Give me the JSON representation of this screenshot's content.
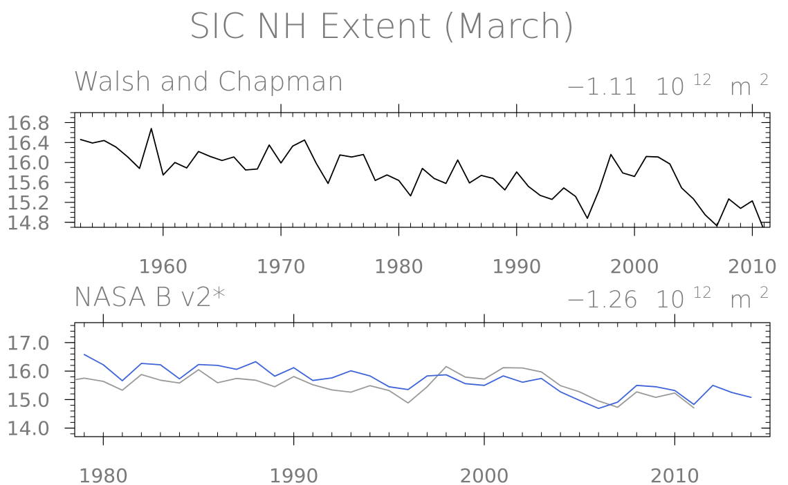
{
  "figure": {
    "title": "SIC NH Extent (March)"
  },
  "chart_data": [
    {
      "type": "line",
      "title": "Walsh and Chapman",
      "trend_value": "−1.11",
      "trend_unit_base": "10",
      "trend_unit_exp": "12",
      "trend_unit_m": "m",
      "trend_unit_m_exp": "2",
      "xlim": [
        1952.5,
        2011.5
      ],
      "ylim": [
        14.7,
        17.0
      ],
      "x_ticks": [
        1960,
        1970,
        1980,
        1990,
        2000,
        2010
      ],
      "x_tick_labels": [
        "1960",
        "1970",
        "1980",
        "1990",
        "2000",
        "2010"
      ],
      "y_ticks": [
        14.8,
        15.2,
        15.6,
        16.0,
        16.4,
        16.8
      ],
      "y_tick_labels": [
        "14.8",
        "15.2",
        "15.6",
        "16.0",
        "16.4",
        "16.8"
      ],
      "grid": false,
      "series": [
        {
          "color": "#000000",
          "x": [
            1953,
            1954,
            1955,
            1956,
            1957,
            1958,
            1959,
            1960,
            1961,
            1962,
            1963,
            1964,
            1965,
            1966,
            1967,
            1968,
            1969,
            1970,
            1971,
            1972,
            1973,
            1974,
            1975,
            1976,
            1977,
            1978,
            1979,
            1980,
            1981,
            1982,
            1983,
            1984,
            1985,
            1986,
            1987,
            1988,
            1989,
            1990,
            1991,
            1992,
            1993,
            1994,
            1995,
            1996,
            1997,
            1998,
            1999,
            2000,
            2001,
            2002,
            2003,
            2004,
            2005,
            2006,
            2007,
            2008,
            2009,
            2010,
            2011
          ],
          "values": [
            16.46,
            16.39,
            16.44,
            16.31,
            16.11,
            15.88,
            16.68,
            15.75,
            16.0,
            15.89,
            16.22,
            16.12,
            16.04,
            16.11,
            15.85,
            15.87,
            16.35,
            15.99,
            16.33,
            16.45,
            15.98,
            15.58,
            16.15,
            16.11,
            16.16,
            15.64,
            15.75,
            15.64,
            15.33,
            15.88,
            15.68,
            15.58,
            16.05,
            15.59,
            15.74,
            15.68,
            15.45,
            15.81,
            15.52,
            15.34,
            15.26,
            15.49,
            15.32,
            14.88,
            15.45,
            16.16,
            15.79,
            15.72,
            16.12,
            16.11,
            15.97,
            15.49,
            15.27,
            14.95,
            14.73,
            15.27,
            15.08,
            15.23,
            14.64
          ]
        }
      ]
    },
    {
      "type": "line",
      "title": "NASA B v2*",
      "trend_value": "−1.26",
      "trend_unit_base": "10",
      "trend_unit_exp": "12",
      "trend_unit_m": "m",
      "trend_unit_m_exp": "2",
      "xlim": [
        1978.5,
        2015.0
      ],
      "ylim": [
        13.7,
        17.7
      ],
      "x_ticks": [
        1980,
        1990,
        2000,
        2010
      ],
      "x_tick_labels": [
        "1980",
        "1990",
        "2000",
        "2010"
      ],
      "y_ticks": [
        14.0,
        15.0,
        16.0,
        17.0
      ],
      "y_tick_labels": [
        "14.0",
        "15.0",
        "16.0",
        "17.0"
      ],
      "grid": false,
      "series": [
        {
          "color": "#3d63d9",
          "x": [
            1979,
            1980,
            1981,
            1982,
            1983,
            1984,
            1985,
            1986,
            1987,
            1988,
            1989,
            1990,
            1991,
            1992,
            1993,
            1994,
            1995,
            1996,
            1997,
            1998,
            1999,
            2000,
            2001,
            2002,
            2003,
            2004,
            2005,
            2006,
            2007,
            2008,
            2009,
            2010,
            2011,
            2012,
            2013,
            2014
          ],
          "values": [
            16.58,
            16.22,
            15.66,
            16.27,
            16.22,
            15.73,
            16.23,
            16.2,
            16.06,
            16.33,
            15.82,
            16.12,
            15.67,
            15.76,
            16.01,
            15.83,
            15.45,
            15.35,
            15.83,
            15.87,
            15.56,
            15.5,
            15.83,
            15.61,
            15.74,
            15.27,
            14.97,
            14.69,
            14.91,
            15.5,
            15.45,
            15.32,
            14.83,
            15.5,
            15.25,
            15.08
          ]
        },
        {
          "color": "#999999",
          "x": [
            1978,
            1979,
            1980,
            1981,
            1982,
            1983,
            1984,
            1985,
            1986,
            1987,
            1988,
            1989,
            1990,
            1991,
            1992,
            1993,
            1994,
            1995,
            1996,
            1997,
            1998,
            1999,
            2000,
            2001,
            2002,
            2003,
            2004,
            2005,
            2006,
            2007,
            2008,
            2009,
            2010,
            2011
          ],
          "values": [
            15.64,
            15.75,
            15.64,
            15.33,
            15.88,
            15.68,
            15.58,
            16.05,
            15.59,
            15.74,
            15.68,
            15.45,
            15.81,
            15.52,
            15.34,
            15.26,
            15.49,
            15.32,
            14.88,
            15.45,
            16.16,
            15.79,
            15.72,
            16.12,
            16.11,
            15.97,
            15.49,
            15.27,
            14.95,
            14.73,
            15.27,
            15.08,
            15.23,
            14.71
          ]
        }
      ]
    }
  ]
}
